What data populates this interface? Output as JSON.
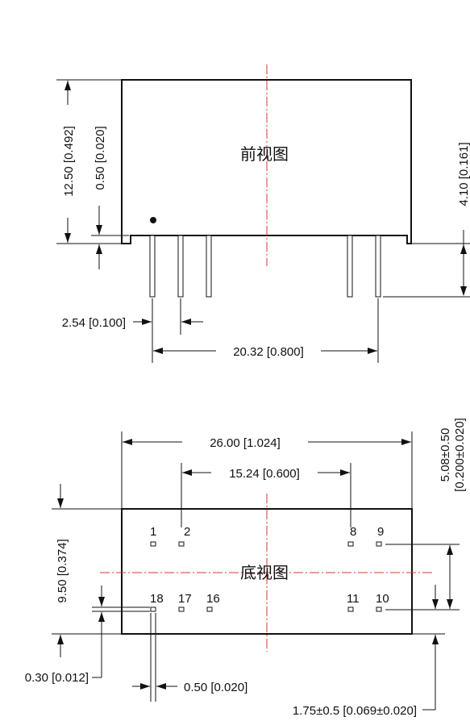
{
  "front_view": {
    "title": "前视图",
    "dim_height": "12.50 [0.492]",
    "dim_standoff": "0.50 [0.020]",
    "dim_pin_length": "4.10 [0.161]",
    "dim_pitch": "2.54 [0.100]",
    "dim_span": "20.32 [0.800]"
  },
  "bottom_view": {
    "title": "底视图",
    "dim_length": "26.00 [1.024]",
    "dim_inner_span": "15.24 [0.600]",
    "dim_width": "9.50 [0.374]",
    "dim_row_spacing_a": "5.08±0.50",
    "dim_row_spacing_b": "[0.200±0.020]",
    "dim_pin_width": "0.30 [0.012]",
    "dim_pin_pitch": "0.50 [0.020]",
    "dim_edge": "1.75±0.5 [0.069±0.020]",
    "pins_top": [
      "1",
      "2",
      "8",
      "9"
    ],
    "pins_bottom": [
      "18",
      "17",
      "16",
      "11",
      "10"
    ]
  },
  "colors": {
    "outline": "#111111",
    "centerline": "#e03030"
  }
}
